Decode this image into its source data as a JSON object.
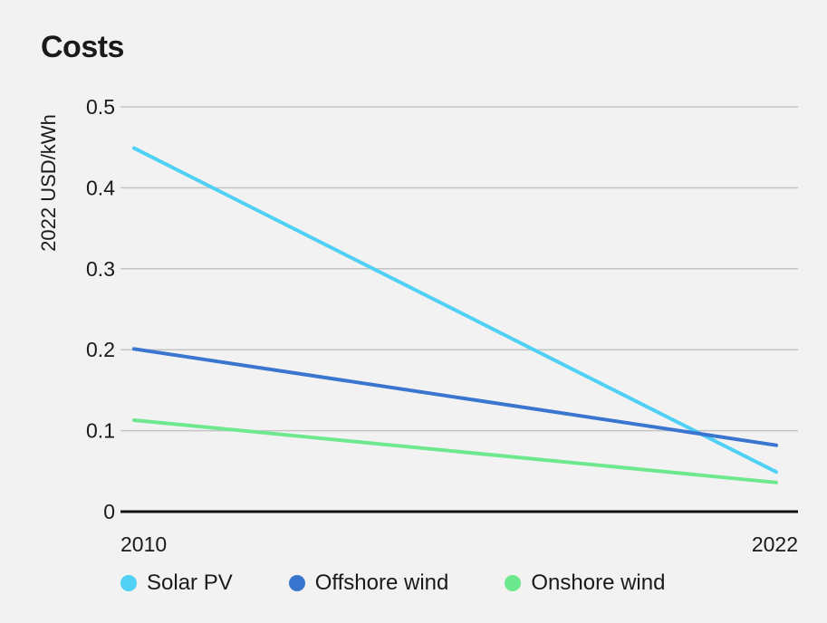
{
  "chart_data": {
    "type": "line",
    "title": "Costs",
    "ylabel": "2022 USD/kWh",
    "xlabel": "",
    "x": [
      2010,
      2022
    ],
    "x_tick_labels": [
      "2010",
      "2022"
    ],
    "ylim": [
      0,
      0.5
    ],
    "y_ticks": [
      0,
      0.1,
      0.2,
      0.3,
      0.4,
      0.5
    ],
    "y_tick_labels": [
      "0",
      "0.1",
      "0.2",
      "0.3",
      "0.4",
      "0.5"
    ],
    "grid": "horizontal",
    "legend_position": "bottom",
    "series": [
      {
        "name": "Solar PV",
        "color": "#4fd0f4",
        "values": [
          0.449,
          0.049
        ]
      },
      {
        "name": "Offshore wind",
        "color": "#3a76d0",
        "values": [
          0.201,
          0.082
        ]
      },
      {
        "name": "Onshore wind",
        "color": "#6ee88f",
        "values": [
          0.113,
          0.036
        ]
      }
    ]
  }
}
